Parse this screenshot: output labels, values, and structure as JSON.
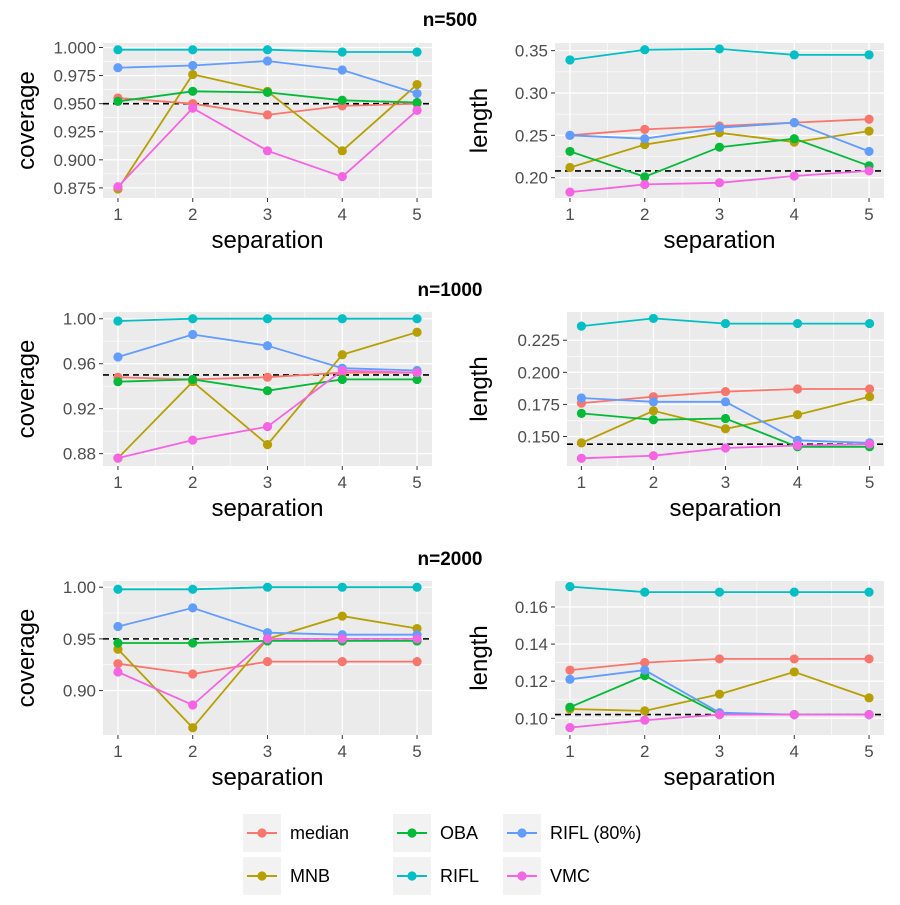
{
  "chart_data": [
    {
      "type": "line",
      "title": "n=500",
      "xlabel": "separation",
      "ylabel": "coverage",
      "x": [
        1,
        2,
        3,
        4,
        5
      ],
      "xlim": [
        0.8,
        5.2
      ],
      "ylim": [
        0.866,
        1.004
      ],
      "yticks": [
        0.875,
        0.9,
        0.925,
        0.95,
        0.975,
        1.0
      ],
      "ytick_labels": [
        "0.875",
        "0.900",
        "0.925",
        "0.950",
        "0.975",
        "1.000"
      ],
      "reference_line": 0.95,
      "grid": true,
      "series": [
        {
          "name": "median",
          "values": [
            0.955,
            0.95,
            0.94,
            0.948,
            0.95
          ]
        },
        {
          "name": "MNB",
          "values": [
            0.874,
            0.976,
            0.961,
            0.908,
            0.967
          ]
        },
        {
          "name": "OBA",
          "values": [
            0.952,
            0.961,
            0.96,
            0.953,
            0.951
          ]
        },
        {
          "name": "RIFL",
          "values": [
            0.998,
            0.998,
            0.998,
            0.996,
            0.996
          ]
        },
        {
          "name": "RIFL (80%)",
          "values": [
            0.982,
            0.984,
            0.988,
            0.98,
            0.959
          ]
        },
        {
          "name": "VMC",
          "values": [
            0.876,
            0.946,
            0.908,
            0.885,
            0.944
          ]
        }
      ]
    },
    {
      "type": "line",
      "title": "",
      "xlabel": "separation",
      "ylabel": "length",
      "x": [
        1,
        2,
        3,
        4,
        5
      ],
      "xlim": [
        0.8,
        5.2
      ],
      "ylim": [
        0.176,
        0.359
      ],
      "yticks": [
        0.2,
        0.25,
        0.3,
        0.35
      ],
      "ytick_labels": [
        "0.20",
        "0.25",
        "0.30",
        "0.35"
      ],
      "reference_line": 0.208,
      "grid": true,
      "series": [
        {
          "name": "median",
          "values": [
            0.25,
            0.257,
            0.261,
            0.265,
            0.269
          ]
        },
        {
          "name": "MNB",
          "values": [
            0.212,
            0.239,
            0.253,
            0.242,
            0.255
          ]
        },
        {
          "name": "OBA",
          "values": [
            0.231,
            0.201,
            0.236,
            0.246,
            0.214
          ]
        },
        {
          "name": "RIFL",
          "values": [
            0.339,
            0.351,
            0.352,
            0.345,
            0.345
          ]
        },
        {
          "name": "RIFL (80%)",
          "values": [
            0.25,
            0.246,
            0.259,
            0.265,
            0.231
          ]
        },
        {
          "name": "VMC",
          "values": [
            0.183,
            0.192,
            0.194,
            0.202,
            0.208
          ]
        }
      ]
    },
    {
      "type": "line",
      "title": "n=1000",
      "xlabel": "separation",
      "ylabel": "coverage",
      "x": [
        1,
        2,
        3,
        4,
        5
      ],
      "xlim": [
        0.8,
        5.2
      ],
      "ylim": [
        0.869,
        1.006
      ],
      "yticks": [
        0.88,
        0.92,
        0.96,
        1.0
      ],
      "ytick_labels": [
        "0.88",
        "0.92",
        "0.96",
        "1.00"
      ],
      "reference_line": 0.95,
      "grid": true,
      "series": [
        {
          "name": "median",
          "values": [
            0.948,
            0.946,
            0.948,
            0.952,
            0.952
          ]
        },
        {
          "name": "MNB",
          "values": [
            0.876,
            0.944,
            0.888,
            0.968,
            0.988
          ]
        },
        {
          "name": "OBA",
          "values": [
            0.944,
            0.946,
            0.936,
            0.946,
            0.946
          ]
        },
        {
          "name": "RIFL",
          "values": [
            0.998,
            1.0,
            1.0,
            1.0,
            1.0
          ]
        },
        {
          "name": "RIFL (80%)",
          "values": [
            0.966,
            0.986,
            0.976,
            0.956,
            0.954
          ]
        },
        {
          "name": "VMC",
          "values": [
            0.876,
            0.892,
            0.904,
            0.954,
            0.952
          ]
        }
      ]
    },
    {
      "type": "line",
      "title": "",
      "xlabel": "separation",
      "ylabel": "length",
      "x": [
        1,
        2,
        3,
        4,
        5
      ],
      "xlim": [
        0.8,
        5.2
      ],
      "ylim": [
        0.127,
        0.247
      ],
      "yticks": [
        0.15,
        0.175,
        0.2,
        0.225
      ],
      "ytick_labels": [
        "0.150",
        "0.175",
        "0.200",
        "0.225"
      ],
      "reference_line": 0.144,
      "grid": true,
      "series": [
        {
          "name": "median",
          "values": [
            0.176,
            0.181,
            0.185,
            0.187,
            0.187
          ]
        },
        {
          "name": "MNB",
          "values": [
            0.145,
            0.17,
            0.156,
            0.167,
            0.181
          ]
        },
        {
          "name": "OBA",
          "values": [
            0.168,
            0.163,
            0.164,
            0.142,
            0.142
          ]
        },
        {
          "name": "RIFL",
          "values": [
            0.236,
            0.242,
            0.238,
            0.238,
            0.238
          ]
        },
        {
          "name": "RIFL (80%)",
          "values": [
            0.18,
            0.177,
            0.177,
            0.147,
            0.145
          ]
        },
        {
          "name": "VMC",
          "values": [
            0.133,
            0.135,
            0.141,
            0.143,
            0.144
          ]
        }
      ]
    },
    {
      "type": "line",
      "title": "n=2000",
      "xlabel": "separation",
      "ylabel": "coverage",
      "x": [
        1,
        2,
        3,
        4,
        5
      ],
      "xlim": [
        0.8,
        5.2
      ],
      "ylim": [
        0.857,
        1.006
      ],
      "yticks": [
        0.9,
        0.95,
        1.0
      ],
      "ytick_labels": [
        "0.90",
        "0.95",
        "1.00"
      ],
      "reference_line": 0.95,
      "grid": true,
      "series": [
        {
          "name": "median",
          "values": [
            0.926,
            0.916,
            0.928,
            0.928,
            0.928
          ]
        },
        {
          "name": "MNB",
          "values": [
            0.94,
            0.864,
            0.95,
            0.972,
            0.96
          ]
        },
        {
          "name": "OBA",
          "values": [
            0.946,
            0.946,
            0.948,
            0.948,
            0.948
          ]
        },
        {
          "name": "RIFL",
          "values": [
            0.998,
            0.998,
            1.0,
            1.0,
            1.0
          ]
        },
        {
          "name": "RIFL (80%)",
          "values": [
            0.962,
            0.98,
            0.956,
            0.954,
            0.954
          ]
        },
        {
          "name": "VMC",
          "values": [
            0.918,
            0.886,
            0.95,
            0.95,
            0.95
          ]
        }
      ]
    },
    {
      "type": "line",
      "title": "",
      "xlabel": "separation",
      "ylabel": "length",
      "x": [
        1,
        2,
        3,
        4,
        5
      ],
      "xlim": [
        0.8,
        5.2
      ],
      "ylim": [
        0.091,
        0.174
      ],
      "yticks": [
        0.1,
        0.12,
        0.14,
        0.16
      ],
      "ytick_labels": [
        "0.10",
        "0.12",
        "0.14",
        "0.16"
      ],
      "reference_line": 0.102,
      "grid": true,
      "series": [
        {
          "name": "median",
          "values": [
            0.126,
            0.13,
            0.132,
            0.132,
            0.132
          ]
        },
        {
          "name": "MNB",
          "values": [
            0.105,
            0.104,
            0.113,
            0.125,
            0.111
          ]
        },
        {
          "name": "OBA",
          "values": [
            0.106,
            0.123,
            0.102,
            0.102,
            0.102
          ]
        },
        {
          "name": "RIFL",
          "values": [
            0.171,
            0.168,
            0.168,
            0.168,
            0.168
          ]
        },
        {
          "name": "RIFL (80%)",
          "values": [
            0.121,
            0.126,
            0.103,
            0.102,
            0.102
          ]
        },
        {
          "name": "VMC",
          "values": [
            0.095,
            0.099,
            0.102,
            0.102,
            0.102
          ]
        }
      ]
    }
  ],
  "legend": {
    "placement": "bottom",
    "items": [
      {
        "label": "median",
        "color": "#F8766D"
      },
      {
        "label": "MNB",
        "color": "#B79F00"
      },
      {
        "label": "OBA",
        "color": "#00BA38"
      },
      {
        "label": "RIFL",
        "color": "#00BFC4"
      },
      {
        "label": "RIFL (80%)",
        "color": "#619CFF"
      },
      {
        "label": "VMC",
        "color": "#F564E3"
      }
    ]
  },
  "colors": {
    "panel_background": "#EBEBEB",
    "grid": "#FFFFFF",
    "reference_line": "#000000",
    "axis_text": "#4D4D4D"
  }
}
